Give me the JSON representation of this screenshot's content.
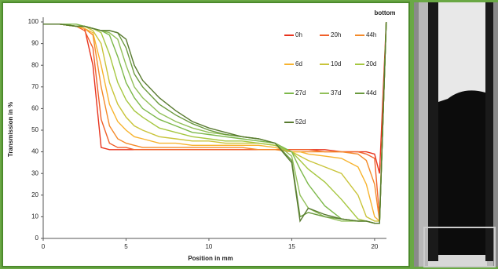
{
  "chart_data": {
    "type": "line",
    "xlabel": "Position in mm",
    "ylabel": "Transmission in %",
    "annotation": "bottom",
    "x": [
      0,
      1,
      2,
      2.5,
      3,
      3.5,
      4,
      4.5,
      5,
      5.5,
      6,
      7,
      8,
      9,
      10,
      11,
      12,
      13,
      14,
      15,
      15.5,
      16,
      17,
      18,
      19,
      19.5,
      20,
      20.3,
      20.7
    ],
    "xlim": [
      0,
      21
    ],
    "xticks": [
      0,
      5,
      10,
      15,
      20
    ],
    "ylim": [
      0,
      100
    ],
    "yticks": [
      0,
      10,
      20,
      30,
      40,
      50,
      60,
      70,
      80,
      90,
      100
    ],
    "series": [
      {
        "name": "0h",
        "color": "#e8321c",
        "values": [
          99,
          99,
          98,
          97,
          80,
          42,
          41,
          41,
          41,
          41,
          41,
          41,
          41,
          41,
          41,
          41,
          41,
          41,
          41,
          41,
          41,
          41,
          41,
          40,
          40,
          40,
          39,
          30,
          100
        ]
      },
      {
        "name": "20h",
        "color": "#f0602a",
        "values": [
          99,
          99,
          98,
          96,
          88,
          55,
          44,
          42,
          42,
          41,
          41,
          41,
          41,
          41,
          41,
          41,
          41,
          41,
          41,
          41,
          41,
          41,
          40,
          40,
          40,
          39,
          37,
          10,
          100
        ]
      },
      {
        "name": "44h",
        "color": "#f48a2a",
        "values": [
          99,
          99,
          98,
          97,
          94,
          70,
          52,
          46,
          44,
          43,
          42,
          42,
          42,
          42,
          42,
          42,
          42,
          41,
          41,
          40,
          40,
          40,
          40,
          40,
          39,
          36,
          25,
          8,
          100
        ]
      },
      {
        "name": "6d",
        "color": "#f7b32e",
        "values": [
          99,
          99,
          98,
          97,
          95,
          80,
          62,
          54,
          50,
          47,
          46,
          44,
          44,
          43,
          43,
          43,
          43,
          43,
          42,
          40,
          40,
          39,
          38,
          37,
          33,
          25,
          10,
          8,
          100
        ]
      },
      {
        "name": "10d",
        "color": "#c9c43a",
        "values": [
          99,
          99,
          98,
          98,
          96,
          90,
          72,
          62,
          56,
          52,
          50,
          47,
          46,
          45,
          45,
          44,
          44,
          44,
          43,
          40,
          38,
          36,
          33,
          30,
          20,
          10,
          8,
          8,
          100
        ]
      },
      {
        "name": "20d",
        "color": "#a6c740",
        "values": [
          99,
          99,
          98,
          98,
          97,
          95,
          85,
          72,
          64,
          59,
          56,
          51,
          49,
          47,
          46,
          45,
          45,
          44,
          43,
          40,
          36,
          32,
          26,
          18,
          9,
          8,
          7,
          7,
          100
        ]
      },
      {
        "name": "27d",
        "color": "#7cb84a",
        "values": [
          99,
          99,
          99,
          98,
          97,
          96,
          94,
          84,
          72,
          65,
          60,
          55,
          52,
          49,
          48,
          47,
          46,
          45,
          44,
          40,
          32,
          25,
          15,
          9,
          8,
          8,
          7,
          7,
          100
        ]
      },
      {
        "name": "37d",
        "color": "#92c05a",
        "values": [
          99,
          99,
          98,
          98,
          97,
          96,
          95,
          92,
          80,
          70,
          65,
          58,
          54,
          51,
          49,
          48,
          47,
          46,
          44,
          38,
          20,
          14,
          10,
          8,
          8,
          8,
          7,
          7,
          100
        ]
      },
      {
        "name": "44d",
        "color": "#6a9a3e",
        "values": [
          99,
          99,
          98,
          98,
          97,
          96,
          96,
          95,
          88,
          76,
          70,
          62,
          57,
          53,
          50,
          48,
          47,
          46,
          44,
          36,
          10,
          12,
          10,
          9,
          8,
          8,
          7,
          7,
          100
        ]
      },
      {
        "name": "52d",
        "color": "#587a30",
        "values": [
          99,
          99,
          98,
          98,
          97,
          96,
          96,
          95,
          92,
          80,
          73,
          65,
          59,
          54,
          51,
          49,
          47,
          46,
          44,
          35,
          8,
          14,
          11,
          9,
          8,
          8,
          7,
          7,
          100
        ]
      }
    ]
  }
}
